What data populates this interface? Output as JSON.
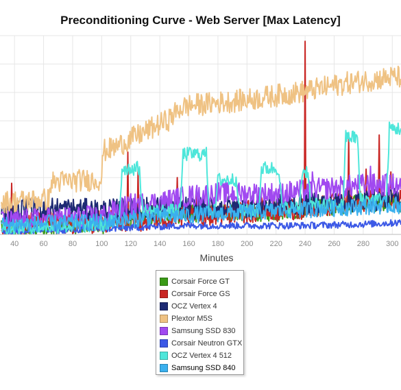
{
  "chart_data": {
    "type": "line",
    "title": "Preconditioning Curve - Web Server [Max Latency]",
    "xlabel": "Minutes",
    "ylabel": "",
    "xlim": [
      30,
      306
    ],
    "ylim": [
      0,
      70
    ],
    "x_ticks": [
      40,
      60,
      80,
      100,
      120,
      140,
      160,
      180,
      200,
      220,
      240,
      260,
      280,
      300
    ],
    "grid": true,
    "legend_position": "bottom",
    "series": [
      {
        "name": "Corsair Force GT",
        "color": "#3a9a16",
        "points": [
          [
            31,
            1.5
          ],
          [
            60,
            2
          ],
          [
            100,
            3
          ],
          [
            140,
            7
          ],
          [
            180,
            7
          ],
          [
            220,
            8
          ],
          [
            260,
            10
          ],
          [
            300,
            11
          ],
          [
            306,
            11
          ]
        ],
        "noise": 3.5,
        "spikes": []
      },
      {
        "name": "Corsair Force GS",
        "color": "#c92624",
        "points": [
          [
            31,
            3
          ],
          [
            60,
            3.5
          ],
          [
            100,
            4
          ],
          [
            140,
            5
          ],
          [
            180,
            7
          ],
          [
            220,
            8
          ],
          [
            260,
            10
          ],
          [
            300,
            13
          ],
          [
            306,
            12
          ]
        ],
        "noise": 4,
        "spikes": [
          [
            38,
            18
          ],
          [
            118,
            29
          ],
          [
            125,
            23
          ],
          [
            152,
            20
          ],
          [
            165,
            15
          ],
          [
            210,
            13
          ],
          [
            240,
            68
          ],
          [
            270,
            34
          ],
          [
            282,
            23
          ],
          [
            291,
            35
          ],
          [
            299,
            22
          ]
        ]
      },
      {
        "name": "OCZ Vertex 4",
        "color": "#1d2a73",
        "points": [
          [
            31,
            7
          ],
          [
            60,
            9
          ],
          [
            100,
            8
          ],
          [
            140,
            9
          ],
          [
            180,
            9
          ],
          [
            220,
            10
          ],
          [
            260,
            11
          ],
          [
            300,
            12
          ],
          [
            306,
            12
          ]
        ],
        "noise": 4,
        "spikes": []
      },
      {
        "name": "Plextor M5S",
        "color": "#efc283",
        "points": [
          [
            31,
            11
          ],
          [
            64,
            12
          ],
          [
            65,
            18
          ],
          [
            100,
            19
          ],
          [
            101,
            29
          ],
          [
            108,
            30
          ],
          [
            146,
            40
          ],
          [
            148,
            41
          ],
          [
            154,
            44
          ],
          [
            160,
            45
          ],
          [
            200,
            47
          ],
          [
            240,
            50
          ],
          [
            270,
            53
          ],
          [
            300,
            55
          ],
          [
            306,
            55
          ]
        ],
        "noise": 4,
        "spikes": []
      },
      {
        "name": "Samsung SSD 830",
        "color": "#a149f0",
        "points": [
          [
            31,
            4
          ],
          [
            60,
            5
          ],
          [
            100,
            6
          ],
          [
            120,
            10
          ],
          [
            140,
            11
          ],
          [
            160,
            13
          ],
          [
            180,
            14
          ],
          [
            200,
            14
          ],
          [
            220,
            14
          ],
          [
            240,
            15
          ],
          [
            260,
            16
          ],
          [
            280,
            17
          ],
          [
            300,
            17
          ],
          [
            306,
            17
          ]
        ],
        "noise": 4,
        "spikes": [
          [
            245,
            22
          ],
          [
            285,
            24
          ],
          [
            295,
            21
          ]
        ]
      },
      {
        "name": "Corsair Neutron GTX",
        "color": "#3c59e6",
        "points": [
          [
            31,
            1
          ],
          [
            80,
            1.5
          ],
          [
            110,
            2
          ],
          [
            130,
            2.5
          ],
          [
            160,
            3
          ],
          [
            200,
            3
          ],
          [
            240,
            3
          ],
          [
            280,
            3.5
          ],
          [
            306,
            4
          ]
        ],
        "noise": 1.2,
        "spikes": [
          [
            302,
            5
          ]
        ]
      },
      {
        "name": "OCZ Vertex 4 512",
        "color": "#4ee6da",
        "points": [
          [
            31,
            2
          ],
          [
            60,
            2.5
          ],
          [
            100,
            3
          ],
          [
            112,
            5
          ],
          [
            114,
            23
          ],
          [
            126,
            23
          ],
          [
            128,
            8
          ],
          [
            154,
            8
          ],
          [
            156,
            28
          ],
          [
            172,
            28
          ],
          [
            174,
            8
          ],
          [
            178,
            8
          ],
          [
            180,
            19
          ],
          [
            193,
            19
          ],
          [
            195,
            8
          ],
          [
            208,
            8
          ],
          [
            210,
            23
          ],
          [
            222,
            23
          ],
          [
            224,
            9
          ],
          [
            236,
            9
          ],
          [
            238,
            22
          ],
          [
            242,
            22
          ],
          [
            244,
            10
          ],
          [
            266,
            10
          ],
          [
            268,
            34
          ],
          [
            276,
            34
          ],
          [
            278,
            12
          ],
          [
            296,
            12
          ],
          [
            298,
            37
          ],
          [
            306,
            37
          ]
        ],
        "noise": 2.5,
        "spikes": []
      },
      {
        "name": "Samsung SSD 840",
        "color": "#3ab0ee",
        "points": [
          [
            31,
            3
          ],
          [
            60,
            3.5
          ],
          [
            100,
            4
          ],
          [
            140,
            6
          ],
          [
            180,
            7
          ],
          [
            220,
            8
          ],
          [
            260,
            9
          ],
          [
            300,
            10
          ],
          [
            306,
            10
          ]
        ],
        "noise": 3,
        "spikes": []
      }
    ]
  }
}
